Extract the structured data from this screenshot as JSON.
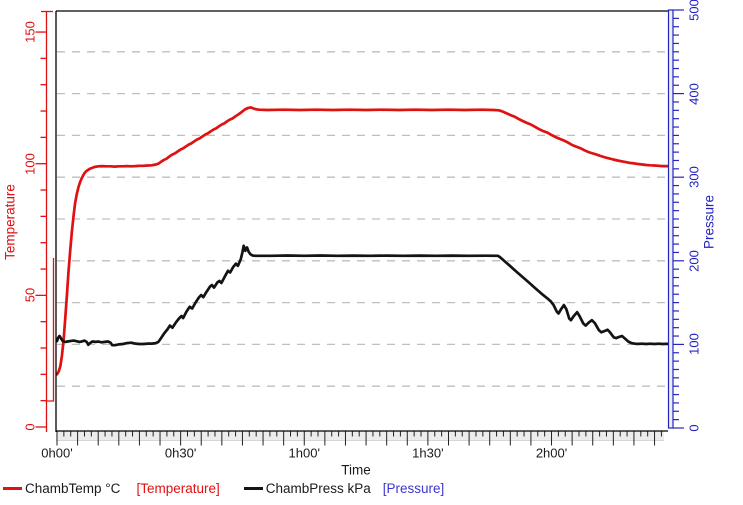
{
  "legend": {
    "series1_label": "ChambTemp °C",
    "series1_bracket": "[Temperature]",
    "series2_label": "ChambPress kPa",
    "series2_bracket": "[Pressure]"
  },
  "colors": {
    "temperature": "#df1111",
    "pressure_axis": "#2424c1",
    "pressure_curve": "#141414",
    "pressure_bracket": "#3d35cf",
    "grid": "#bfbfbf",
    "band": "#ececec"
  },
  "chart_data": {
    "type": "line",
    "title": "",
    "x_axis": {
      "label": "Time",
      "tick_labels": [
        "0h00'",
        "0h30'",
        "1h00'",
        "1h30'",
        "2h00'"
      ],
      "tick_minutes": [
        0,
        30,
        60,
        90,
        120
      ],
      "range_minutes": [
        0,
        148.5
      ],
      "major_tick_step_min": 5,
      "minor_ticks_per_major": 3
    },
    "y_left": {
      "label": "Temperature",
      "color": "#df1111",
      "ticks": [
        0,
        50,
        100,
        150
      ],
      "minor_step": 10,
      "range": [
        0,
        158
      ]
    },
    "y_right": {
      "label": "Pressure",
      "color": "#2424c1",
      "ticks": [
        0,
        100,
        200,
        300,
        400,
        500
      ],
      "minor_step": 10,
      "range": [
        0,
        500
      ]
    },
    "grid": {
      "horizontal_every_kpa": 50,
      "style": "dashed",
      "vertical": false
    },
    "series": [
      {
        "name": "ChambTemp °C",
        "axis": "left",
        "unit": "°C",
        "color": "#df1111",
        "points": [
          [
            -0.3,
            20
          ],
          [
            0,
            20
          ],
          [
            0.4,
            21
          ],
          [
            0.8,
            23
          ],
          [
            1.2,
            27
          ],
          [
            1.6,
            33
          ],
          [
            2,
            41
          ],
          [
            2.4,
            50
          ],
          [
            2.8,
            59
          ],
          [
            3.2,
            67
          ],
          [
            3.6,
            74
          ],
          [
            4,
            80
          ],
          [
            4.4,
            85
          ],
          [
            4.8,
            88.5
          ],
          [
            5.2,
            91
          ],
          [
            5.6,
            93
          ],
          [
            6,
            94.5
          ],
          [
            6.5,
            96
          ],
          [
            7,
            97
          ],
          [
            7.5,
            97.6
          ],
          [
            8,
            98.1
          ],
          [
            9,
            98.7
          ],
          [
            10,
            99
          ],
          [
            11,
            99.1
          ],
          [
            12,
            99
          ],
          [
            13,
            99
          ],
          [
            14,
            98.9
          ],
          [
            15,
            99
          ],
          [
            16,
            99
          ],
          [
            17,
            99.1
          ],
          [
            18,
            99
          ],
          [
            19,
            99.1
          ],
          [
            20,
            99.2
          ],
          [
            21,
            99.2
          ],
          [
            22,
            99.3
          ],
          [
            23,
            99.4
          ],
          [
            24,
            99.7
          ],
          [
            24.6,
            100
          ],
          [
            25.4,
            100.9
          ],
          [
            26,
            101.5
          ],
          [
            26.6,
            101.9
          ],
          [
            27.4,
            102.9
          ],
          [
            28,
            103.5
          ],
          [
            28.6,
            103.9
          ],
          [
            29.4,
            104.8
          ],
          [
            30,
            105.4
          ],
          [
            30.6,
            105.8
          ],
          [
            31.4,
            106.7
          ],
          [
            32,
            107.3
          ],
          [
            32.6,
            107.7
          ],
          [
            33.4,
            108.6
          ],
          [
            34,
            109.2
          ],
          [
            34.6,
            109.6
          ],
          [
            35.4,
            110.5
          ],
          [
            36,
            111.1
          ],
          [
            36.6,
            111.5
          ],
          [
            37.4,
            112.4
          ],
          [
            38,
            113
          ],
          [
            38.6,
            113.4
          ],
          [
            39.4,
            114.3
          ],
          [
            40,
            114.9
          ],
          [
            40.6,
            115.3
          ],
          [
            41.4,
            116.2
          ],
          [
            42,
            116.8
          ],
          [
            42.6,
            117.2
          ],
          [
            43.4,
            118.1
          ],
          [
            44,
            118.7
          ],
          [
            44.8,
            119.6
          ],
          [
            45.6,
            120.6
          ],
          [
            46.4,
            121.2
          ],
          [
            47,
            121.4
          ],
          [
            47.6,
            121
          ],
          [
            48.2,
            120.7
          ],
          [
            49,
            120.5
          ],
          [
            51,
            120.4
          ],
          [
            55,
            120.5
          ],
          [
            59,
            120.4
          ],
          [
            63,
            120.5
          ],
          [
            67,
            120.4
          ],
          [
            71,
            120.5
          ],
          [
            75,
            120.4
          ],
          [
            79,
            120.5
          ],
          [
            83,
            120.4
          ],
          [
            87,
            120.5
          ],
          [
            91,
            120.4
          ],
          [
            95,
            120.5
          ],
          [
            99,
            120.4
          ],
          [
            103,
            120.5
          ],
          [
            106,
            120.4
          ],
          [
            107.2,
            120.3
          ],
          [
            108,
            119.9
          ],
          [
            109,
            119.2
          ],
          [
            110,
            118.5
          ],
          [
            111,
            117.9
          ],
          [
            112,
            117
          ],
          [
            113,
            116.2
          ],
          [
            114,
            115.5
          ],
          [
            115,
            114.9
          ],
          [
            116,
            114
          ],
          [
            117,
            113.1
          ],
          [
            118,
            112.4
          ],
          [
            119,
            111.8
          ],
          [
            120,
            110.9
          ],
          [
            121,
            110.1
          ],
          [
            122,
            109.4
          ],
          [
            123,
            108.8
          ],
          [
            124,
            108
          ],
          [
            125,
            107.1
          ],
          [
            126,
            106.5
          ],
          [
            127,
            105.9
          ],
          [
            128,
            105.1
          ],
          [
            129,
            104.4
          ],
          [
            130,
            103.9
          ],
          [
            131,
            103.4
          ],
          [
            132,
            102.9
          ],
          [
            133,
            102.4
          ],
          [
            134,
            102
          ],
          [
            135,
            101.6
          ],
          [
            136,
            101.2
          ],
          [
            137,
            100.9
          ],
          [
            138,
            100.6
          ],
          [
            139,
            100.3
          ],
          [
            140,
            100.1
          ],
          [
            141,
            99.9
          ],
          [
            142,
            99.7
          ],
          [
            143,
            99.5
          ],
          [
            144,
            99.4
          ],
          [
            145,
            99.3
          ],
          [
            146,
            99.2
          ],
          [
            147,
            99.1
          ],
          [
            148,
            99.1
          ],
          [
            148.5,
            99
          ]
        ]
      },
      {
        "name": "ChambPress kPa",
        "axis": "right",
        "unit": "kPa",
        "color": "#141414",
        "points": [
          [
            -0.3,
            104
          ],
          [
            0,
            104
          ],
          [
            0.3,
            108
          ],
          [
            0.6,
            110
          ],
          [
            1,
            107
          ],
          [
            1.4,
            104
          ],
          [
            2,
            103
          ],
          [
            2.6,
            103.5
          ],
          [
            3.2,
            104
          ],
          [
            4,
            104.5
          ],
          [
            4.6,
            104
          ],
          [
            5.4,
            103
          ],
          [
            6,
            103.5
          ],
          [
            6.6,
            104.5
          ],
          [
            7.2,
            103
          ],
          [
            7.6,
            99.5
          ],
          [
            8,
            101.5
          ],
          [
            8.6,
            103.5
          ],
          [
            9.4,
            103
          ],
          [
            10,
            103.5
          ],
          [
            10.8,
            102.5
          ],
          [
            11.6,
            103
          ],
          [
            12.4,
            103.5
          ],
          [
            13,
            102
          ],
          [
            13.4,
            99
          ],
          [
            14,
            99
          ],
          [
            15,
            100
          ],
          [
            16,
            100.5
          ],
          [
            17,
            101.5
          ],
          [
            18,
            102
          ],
          [
            19,
            101
          ],
          [
            20,
            100.5
          ],
          [
            21,
            100.5
          ],
          [
            22,
            101
          ],
          [
            23,
            101
          ],
          [
            24,
            101.5
          ],
          [
            24.6,
            103
          ],
          [
            25.2,
            107
          ],
          [
            26,
            113
          ],
          [
            26.8,
            118
          ],
          [
            27.4,
            122.5
          ],
          [
            28,
            120
          ],
          [
            28.8,
            126
          ],
          [
            29.6,
            131
          ],
          [
            30.2,
            134
          ],
          [
            30.6,
            131.5
          ],
          [
            31.4,
            139
          ],
          [
            32.2,
            145
          ],
          [
            32.8,
            143
          ],
          [
            33.6,
            150
          ],
          [
            34.4,
            156
          ],
          [
            35,
            159
          ],
          [
            35.5,
            156.5
          ],
          [
            36.3,
            163
          ],
          [
            37.1,
            169
          ],
          [
            37.6,
            171
          ],
          [
            38.1,
            168
          ],
          [
            38.9,
            174
          ],
          [
            39.4,
            176
          ],
          [
            39.9,
            173.5
          ],
          [
            40.7,
            181
          ],
          [
            41.5,
            188
          ],
          [
            42,
            186
          ],
          [
            42.8,
            193
          ],
          [
            43.4,
            196.5
          ],
          [
            43.9,
            194
          ],
          [
            44.6,
            202
          ],
          [
            45,
            210
          ],
          [
            45.3,
            218
          ],
          [
            45.7,
            212
          ],
          [
            46.1,
            216
          ],
          [
            46.5,
            211
          ],
          [
            46.9,
            208
          ],
          [
            47.4,
            206.5
          ],
          [
            48,
            206
          ],
          [
            52,
            206
          ],
          [
            56,
            206.3
          ],
          [
            60,
            206
          ],
          [
            64,
            206.3
          ],
          [
            68,
            206
          ],
          [
            72,
            206.2
          ],
          [
            76,
            206
          ],
          [
            80,
            206.2
          ],
          [
            84,
            206
          ],
          [
            88,
            206.2
          ],
          [
            92,
            206
          ],
          [
            96,
            206.2
          ],
          [
            100,
            206
          ],
          [
            104,
            206.1
          ],
          [
            107,
            206
          ],
          [
            107.6,
            204
          ],
          [
            108.5,
            200
          ],
          [
            110,
            193.5
          ],
          [
            111.5,
            187
          ],
          [
            113,
            180.5
          ],
          [
            114.5,
            174
          ],
          [
            116,
            167.5
          ],
          [
            117.5,
            161
          ],
          [
            119,
            155
          ],
          [
            119.8,
            151.5
          ],
          [
            120.5,
            147
          ],
          [
            121.3,
            139
          ],
          [
            121.7,
            137
          ],
          [
            122.3,
            142
          ],
          [
            123,
            147
          ],
          [
            123.6,
            142
          ],
          [
            124.3,
            131
          ],
          [
            124.7,
            129
          ],
          [
            125.4,
            134
          ],
          [
            126.2,
            138.5
          ],
          [
            126.8,
            134
          ],
          [
            127.7,
            125
          ],
          [
            128.3,
            122.5
          ],
          [
            129,
            126
          ],
          [
            129.8,
            129
          ],
          [
            130.5,
            125.5
          ],
          [
            131.5,
            117
          ],
          [
            132.1,
            114.5
          ],
          [
            132.9,
            116
          ],
          [
            133.6,
            117.5
          ],
          [
            134.2,
            114.5
          ],
          [
            135.1,
            108.5
          ],
          [
            135.7,
            107.5
          ],
          [
            136.4,
            109
          ],
          [
            137.1,
            110
          ],
          [
            137.8,
            107
          ],
          [
            138.6,
            103.5
          ],
          [
            139.4,
            101.5
          ],
          [
            140.2,
            100.8
          ],
          [
            141,
            100.6
          ],
          [
            142,
            100.8
          ],
          [
            143,
            100.5
          ],
          [
            144,
            100.8
          ],
          [
            145,
            100.5
          ],
          [
            146,
            100.8
          ],
          [
            147,
            100.5
          ],
          [
            148,
            100.7
          ],
          [
            148.5,
            100.6
          ]
        ]
      }
    ]
  }
}
